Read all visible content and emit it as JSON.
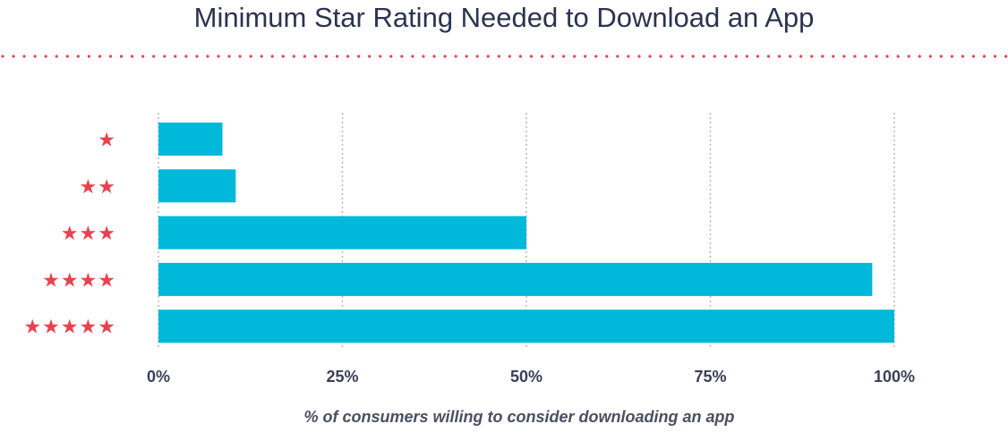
{
  "chart_data": {
    "type": "bar",
    "orientation": "horizontal",
    "title": "Minimum Star Rating Needed to Download an App",
    "xlabel": "% of consumers willing to consider downloading an app",
    "ylabel": "",
    "categories": [
      "★",
      "★★",
      "★★★",
      "★★★★",
      "★★★★★"
    ],
    "values": [
      8.7,
      10.5,
      50,
      97,
      100
    ],
    "xlim": [
      0,
      100
    ],
    "x_ticks": [
      "0%",
      "25%",
      "50%",
      "75%",
      "100%"
    ],
    "x_tick_values": [
      0,
      25,
      50,
      75,
      100
    ],
    "grid": "vertical dotted",
    "legend": "none"
  },
  "colors": {
    "bar": "#00b8d9",
    "star": "#e8424f",
    "title": "#2b3350",
    "tick_label": "#3a3f55",
    "grid": "#b9b9b9",
    "divider": "#e8424f"
  }
}
